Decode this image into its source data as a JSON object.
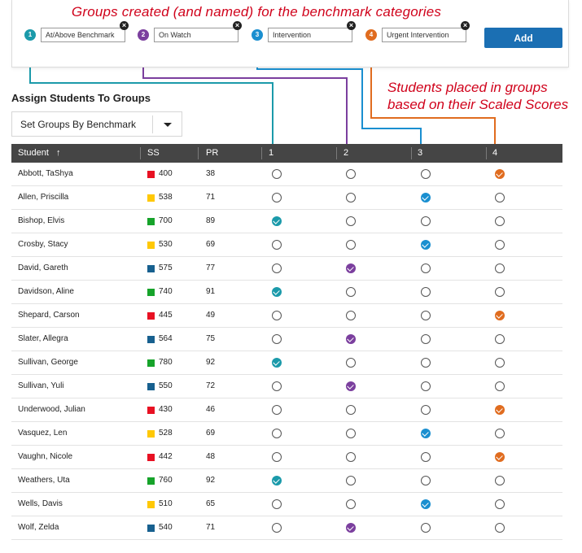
{
  "annotations": {
    "top": "Groups created (and named) for the benchmark categories",
    "right_line1": "Students placed in groups",
    "right_line2": "based on their Scaled Scores"
  },
  "groups": [
    {
      "num": "1",
      "name": "At/Above Benchmark",
      "color": "#1b9aaa"
    },
    {
      "num": "2",
      "name": "On Watch",
      "color": "#7b3f9e"
    },
    {
      "num": "3",
      "name": "Intervention",
      "color": "#1a8fd0"
    },
    {
      "num": "4",
      "name": "Urgent Intervention",
      "color": "#e06c1f"
    }
  ],
  "add_button": "Add",
  "section_title": "Assign Students To Groups",
  "dropdown": {
    "selected": "Set Groups By Benchmark"
  },
  "table": {
    "headers": {
      "student": "Student",
      "sort_icon": "↑",
      "ss": "SS",
      "pr": "PR",
      "g1": "1",
      "g2": "2",
      "g3": "3",
      "g4": "4"
    },
    "swatch_colors": {
      "red": "#e81123",
      "yellow": "#ffc805",
      "green": "#16a32a",
      "blue": "#17608f"
    },
    "rows": [
      {
        "name": "Abbott, TaShya",
        "swatch": "red",
        "ss": "400",
        "pr": "38",
        "group": 4
      },
      {
        "name": "Allen, Priscilla",
        "swatch": "yellow",
        "ss": "538",
        "pr": "71",
        "group": 3
      },
      {
        "name": "Bishop, Elvis",
        "swatch": "green",
        "ss": "700",
        "pr": "89",
        "group": 1
      },
      {
        "name": "Crosby, Stacy",
        "swatch": "yellow",
        "ss": "530",
        "pr": "69",
        "group": 3
      },
      {
        "name": "David, Gareth",
        "swatch": "blue",
        "ss": "575",
        "pr": "77",
        "group": 2
      },
      {
        "name": "Davidson, Aline",
        "swatch": "green",
        "ss": "740",
        "pr": "91",
        "group": 1
      },
      {
        "name": "Shepard, Carson",
        "swatch": "red",
        "ss": "445",
        "pr": "49",
        "group": 4
      },
      {
        "name": "Slater, Allegra",
        "swatch": "blue",
        "ss": "564",
        "pr": "75",
        "group": 2
      },
      {
        "name": "Sullivan, George",
        "swatch": "green",
        "ss": "780",
        "pr": "92",
        "group": 1
      },
      {
        "name": "Sullivan, Yuli",
        "swatch": "blue",
        "ss": "550",
        "pr": "72",
        "group": 2
      },
      {
        "name": "Underwood, Julian",
        "swatch": "red",
        "ss": "430",
        "pr": "46",
        "group": 4
      },
      {
        "name": "Vasquez, Len",
        "swatch": "yellow",
        "ss": "528",
        "pr": "69",
        "group": 3
      },
      {
        "name": "Vaughn, Nicole",
        "swatch": "red",
        "ss": "442",
        "pr": "48",
        "group": 4
      },
      {
        "name": "Weathers, Uta",
        "swatch": "green",
        "ss": "760",
        "pr": "92",
        "group": 1
      },
      {
        "name": "Wells, Davis",
        "swatch": "yellow",
        "ss": "510",
        "pr": "65",
        "group": 3
      },
      {
        "name": "Wolf, Zelda",
        "swatch": "blue",
        "ss": "540",
        "pr": "71",
        "group": 2
      }
    ]
  }
}
